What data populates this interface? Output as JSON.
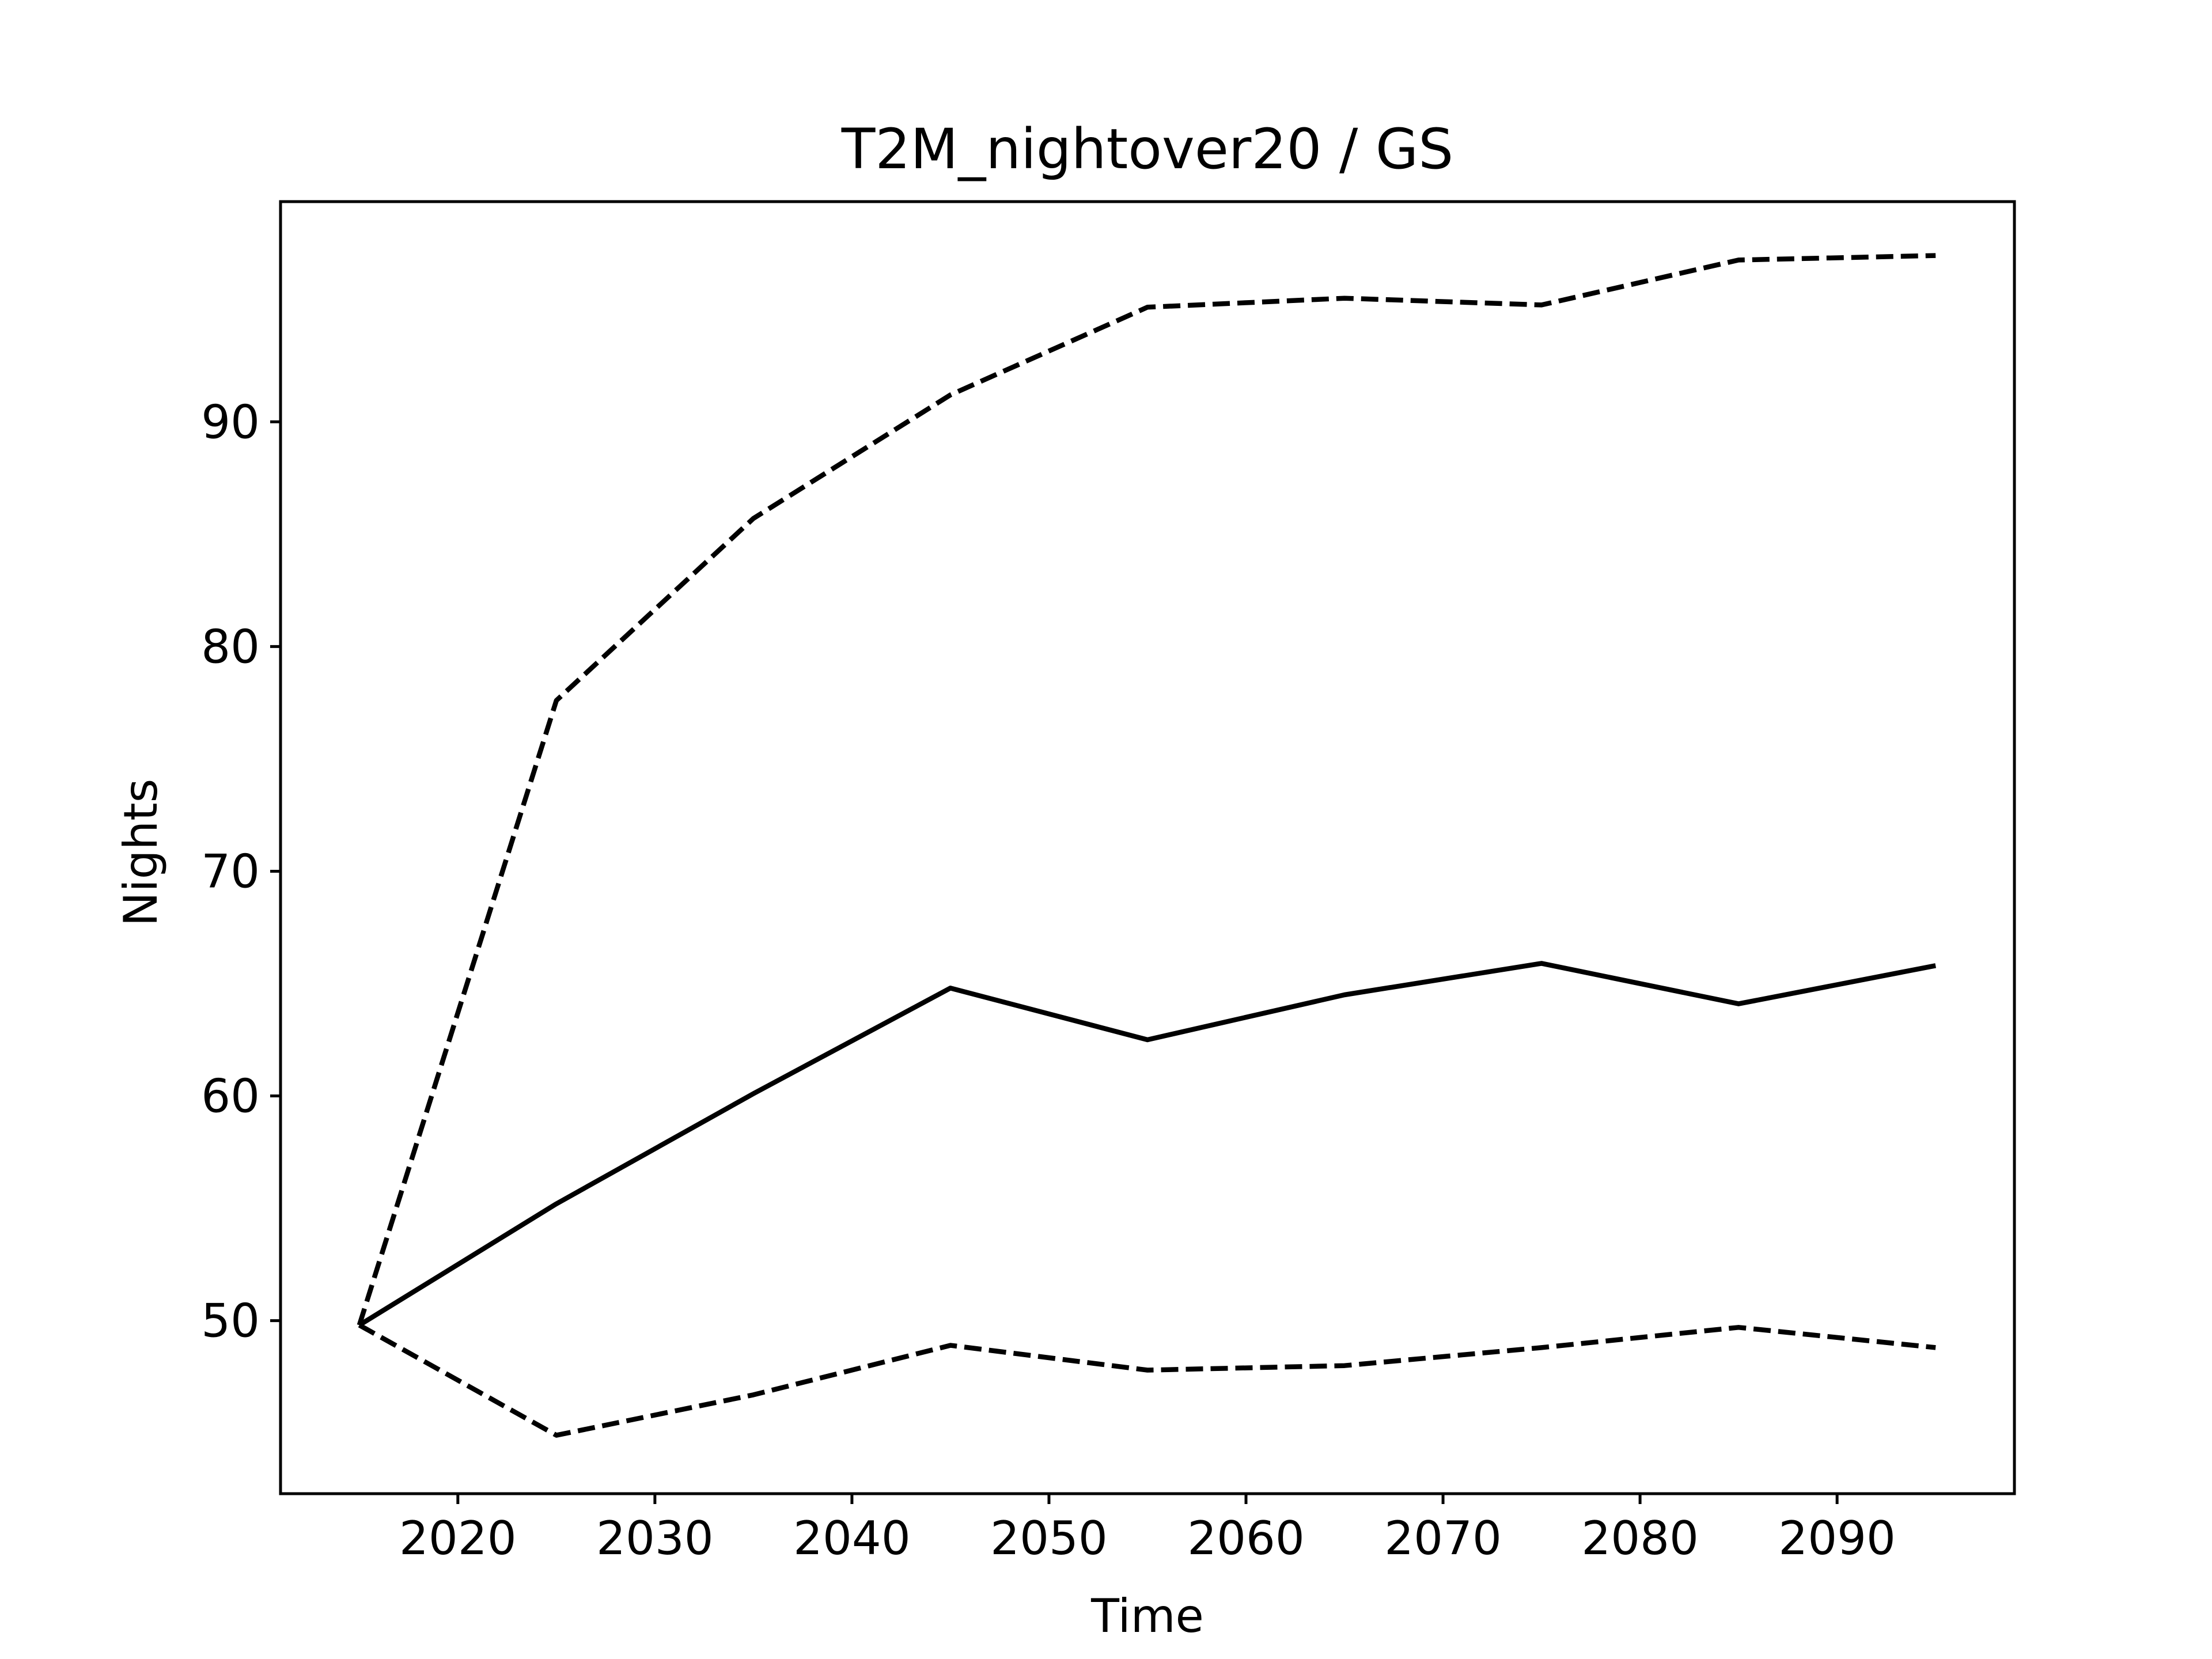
{
  "chart_data": {
    "type": "line",
    "title": "T2M_nightover20 / GS",
    "xlabel": "Time",
    "ylabel": "Nights",
    "xlim": [
      2011,
      2099
    ],
    "ylim": [
      42.3,
      99.8
    ],
    "xticks": [
      2020,
      2030,
      2040,
      2050,
      2060,
      2070,
      2080,
      2090
    ],
    "yticks": [
      50,
      60,
      70,
      80,
      90
    ],
    "grid": false,
    "x": [
      2015,
      2025,
      2035,
      2045,
      2055,
      2065,
      2075,
      2085,
      2095
    ],
    "series": [
      {
        "style": "dashed",
        "color": "#000000",
        "values": [
          49.8,
          77.6,
          85.7,
          91.2,
          95.1,
          95.5,
          95.2,
          97.2,
          97.4
        ]
      },
      {
        "style": "solid",
        "color": "#000000",
        "values": [
          49.8,
          55.2,
          60.1,
          64.8,
          62.5,
          64.5,
          65.9,
          64.1,
          65.8
        ]
      },
      {
        "style": "dashed",
        "color": "#000000",
        "values": [
          49.8,
          44.9,
          46.7,
          48.9,
          47.8,
          48.0,
          48.8,
          49.7,
          48.8
        ]
      }
    ]
  }
}
